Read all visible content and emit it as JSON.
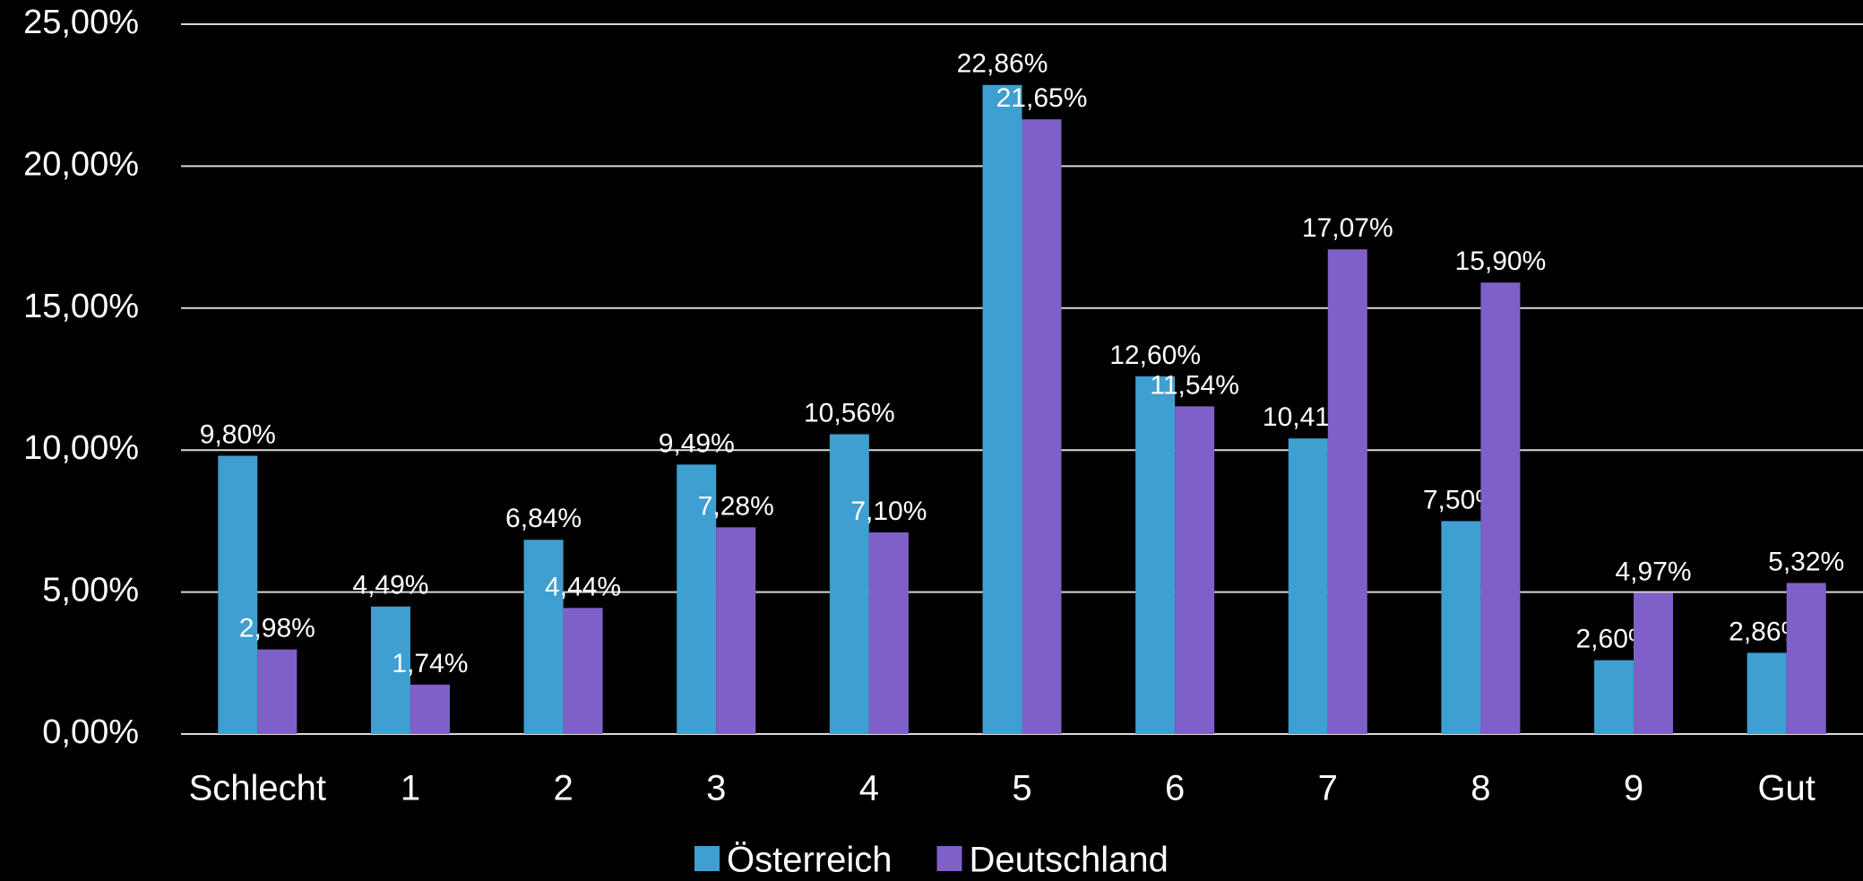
{
  "chart_data": {
    "type": "bar",
    "categories": [
      "Schlecht",
      "1",
      "2",
      "3",
      "4",
      "5",
      "6",
      "7",
      "8",
      "9",
      "Gut"
    ],
    "series": [
      {
        "name": "Österreich",
        "color": "#3f9fd0",
        "values": [
          9.8,
          4.49,
          6.84,
          9.49,
          10.56,
          22.86,
          12.6,
          10.41,
          7.5,
          2.6,
          2.86
        ],
        "value_labels": [
          "9,80%",
          "4,49%",
          "6,84%",
          "9,49%",
          "10,56%",
          "22,86%",
          "12,60%",
          "10,41%",
          "7,50%",
          "2,60%",
          "2,86%"
        ]
      },
      {
        "name": "Deutschland",
        "color": "#7f60c8",
        "values": [
          2.98,
          1.74,
          4.44,
          7.28,
          7.1,
          21.65,
          11.54,
          17.07,
          15.9,
          4.97,
          5.32
        ],
        "value_labels": [
          "2,98%",
          "1,74%",
          "4,44%",
          "7,28%",
          "7,10%",
          "21,65%",
          "11,54%",
          "17,07%",
          "15,90%",
          "4,97%",
          "5,32%"
        ]
      }
    ],
    "ylim": [
      0,
      25
    ],
    "yticks": [
      {
        "value": 0,
        "label": "0,00%"
      },
      {
        "value": 5,
        "label": "5,00%"
      },
      {
        "value": 10,
        "label": "10,00%"
      },
      {
        "value": 15,
        "label": "15,00%"
      },
      {
        "value": 20,
        "label": "20,00%"
      },
      {
        "value": 25,
        "label": "25,00%"
      }
    ],
    "grid": true,
    "legend": "bottom"
  }
}
